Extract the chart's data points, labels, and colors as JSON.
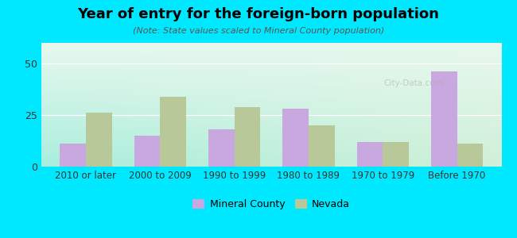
{
  "title": "Year of entry for the foreign-born population",
  "subtitle": "(Note: State values scaled to Mineral County population)",
  "categories": [
    "2010 or later",
    "2000 to 2009",
    "1990 to 1999",
    "1980 to 1989",
    "1970 to 1979",
    "Before 1970"
  ],
  "mineral_county": [
    11,
    15,
    18,
    28,
    12,
    46
  ],
  "nevada": [
    26,
    34,
    29,
    20,
    12,
    11
  ],
  "mineral_color": "#c9a8e0",
  "nevada_color": "#b8c898",
  "background_outer": "#00e8ff",
  "ylim": [
    0,
    60
  ],
  "yticks": [
    0,
    25,
    50
  ],
  "bar_width": 0.35,
  "legend_mineral": "Mineral County",
  "legend_nevada": "Nevada"
}
